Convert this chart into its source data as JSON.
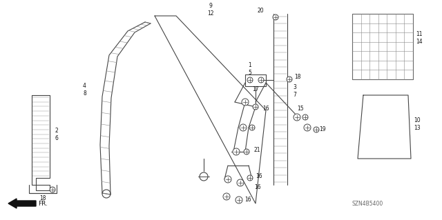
{
  "background_color": "#ffffff",
  "image_code": "SZN4B5400",
  "line_color": "#444444",
  "hatch_color": "#888888",
  "label_color": "#111111"
}
